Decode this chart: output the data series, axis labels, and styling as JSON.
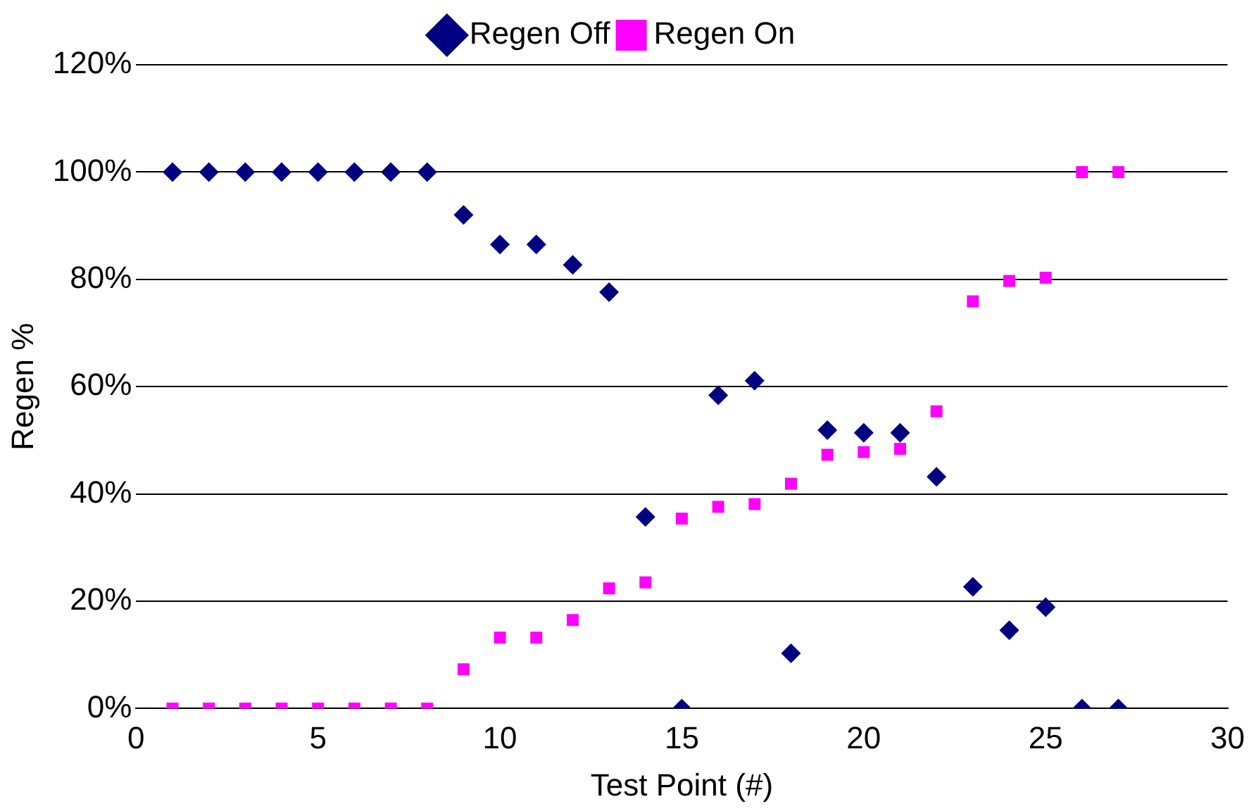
{
  "chart_data": {
    "type": "scatter",
    "xlabel": "Test Point (#)",
    "ylabel": "Regen %",
    "x": [
      1,
      2,
      3,
      4,
      5,
      6,
      7,
      8,
      9,
      10,
      11,
      12,
      13,
      14,
      15,
      16,
      17,
      18,
      19,
      20,
      21,
      22,
      23,
      24,
      25,
      26,
      27
    ],
    "series": [
      {
        "name": "Regen Off",
        "color": "#000080",
        "marker": "diamond",
        "values": [
          100,
          100,
          100,
          100,
          100,
          100,
          100,
          100,
          92,
          86.5,
          86.5,
          82.7,
          77.6,
          35.7,
          0,
          58.4,
          61.1,
          10.3,
          51.9,
          51.4,
          51.4,
          43.2,
          22.7,
          14.6,
          18.9,
          0,
          0
        ]
      },
      {
        "name": "Regen On",
        "color": "#ff00ff",
        "marker": "square",
        "values": [
          0,
          0,
          0,
          0,
          0,
          0,
          0,
          0,
          7.3,
          13.2,
          13.2,
          16.5,
          22.4,
          23.5,
          35.4,
          37.6,
          38.1,
          41.9,
          47.3,
          47.8,
          48.4,
          55.4,
          75.9,
          79.7,
          80.3,
          100,
          100
        ]
      }
    ],
    "xlim": [
      0,
      30
    ],
    "xticks": [
      0,
      5,
      10,
      15,
      20,
      25,
      30
    ],
    "ylim": [
      0,
      120
    ],
    "yticks": [
      {
        "value": 0,
        "label": "0%"
      },
      {
        "value": 20,
        "label": "20%"
      },
      {
        "value": 40,
        "label": "40%"
      },
      {
        "value": 60,
        "label": "60%"
      },
      {
        "value": 80,
        "label": "80%"
      },
      {
        "value": 100,
        "label": "100%"
      },
      {
        "value": 120,
        "label": "120%"
      }
    ],
    "grid": "y",
    "legend": "top"
  }
}
